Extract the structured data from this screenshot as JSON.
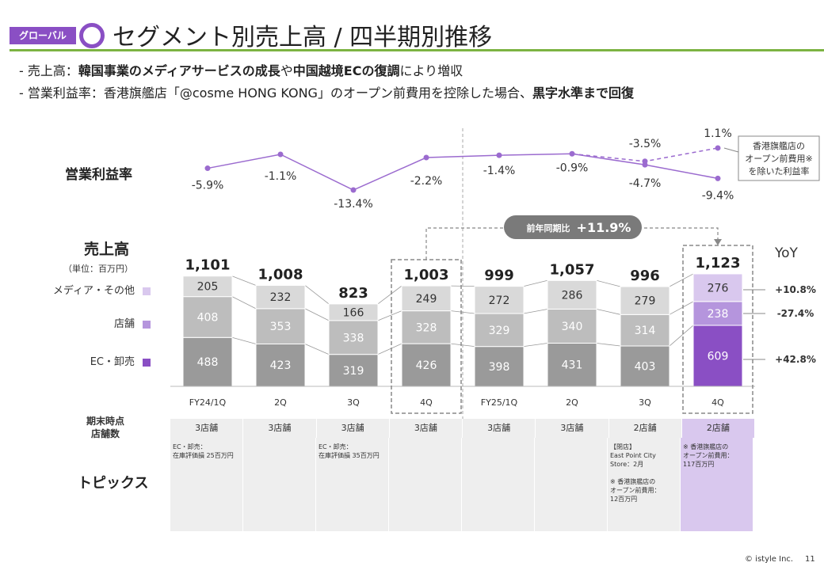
{
  "header": {
    "tag": "グローバル",
    "title": "セグメント別売上高 / 四半期別推移"
  },
  "bullets": [
    {
      "parts": [
        {
          "t": "- 売上高：",
          "b": false
        },
        {
          "t": "韓国事業のメディアサービスの成長",
          "b": true
        },
        {
          "t": "や",
          "b": false
        },
        {
          "t": "中国越境ECの復調",
          "b": true
        },
        {
          "t": "により増収",
          "b": false
        }
      ]
    },
    {
      "parts": [
        {
          "t": "- 営業利益率：香港旗艦店「@cosme HONG KONG」のオープン前費用を控除した場合、",
          "b": false
        },
        {
          "t": "黒字水準まで回復",
          "b": true
        }
      ]
    }
  ],
  "labels": {
    "margin_title": "営業利益率",
    "sales_title": "売上高",
    "unit": "（単位：百万円）",
    "legend_media": "メディア・その他",
    "legend_store": "店舗",
    "legend_ec": "EC・卸売",
    "yoy_title": "YoY",
    "yoy_callout_label": "前年同期比",
    "yoy_callout_value": "+11.9%",
    "note_box": "香港旗艦店の\nオープン前費用※\nを除いた利益率",
    "stores_header": "期末時点\n店舗数",
    "topics_header": "トピックス"
  },
  "colors": {
    "accent": "#8a4fc4",
    "green_rule": "#7cb342",
    "ec": "#9a9a9a",
    "store": "#bdbdbd",
    "media": "#d9d9d9",
    "ec_hl": "#8a4fc4",
    "store_hl": "#b595dd",
    "media_hl": "#d9c8ee",
    "line": "#9b6bcf"
  },
  "chart_data": {
    "type": "bar",
    "title": "売上高",
    "categories": [
      "FY24/1Q",
      "2Q",
      "3Q",
      "4Q",
      "FY25/1Q",
      "2Q",
      "3Q",
      "4Q"
    ],
    "series": [
      {
        "name": "EC・卸売",
        "values": [
          488,
          423,
          319,
          426,
          398,
          431,
          403,
          609
        ]
      },
      {
        "name": "店舗",
        "values": [
          408,
          353,
          338,
          328,
          329,
          340,
          314,
          238
        ]
      },
      {
        "name": "メディア・その他",
        "values": [
          205,
          232,
          166,
          249,
          272,
          286,
          279,
          276
        ]
      }
    ],
    "totals": [
      "1,101",
      "1,008",
      "823",
      "1,003",
      "999",
      "1,057",
      "996",
      "1,123"
    ],
    "yoy": [
      {
        "series": "メディア・その他",
        "value": "+10.8%"
      },
      {
        "series": "店舗",
        "value": "-27.4%"
      },
      {
        "series": "EC・卸売",
        "value": "+42.8%"
      }
    ],
    "margin": {
      "type": "line",
      "name": "営業利益率",
      "values": [
        -5.9,
        -1.1,
        -13.4,
        -2.2,
        -1.4,
        -0.9,
        -4.7,
        -9.4
      ],
      "labels": [
        "-5.9%",
        "-1.1%",
        "-13.4%",
        "-2.2%",
        "-1.4%",
        "-0.9%",
        "-4.7%",
        "-9.4%"
      ],
      "adjusted": {
        "name": "香港旗艦店のオープン前費用※を除いた利益率",
        "from_index": 6,
        "values": [
          -3.5,
          1.1
        ],
        "labels": [
          "-3.5%",
          "1.1%"
        ]
      }
    }
  },
  "stores": [
    "3店舗",
    "3店舗",
    "3店舗",
    "3店舗",
    "3店舗",
    "3店舗",
    "2店舗",
    "2店舗"
  ],
  "topics": [
    "EC・卸売：\n在庫評価損 25百万円",
    "",
    "EC・卸売：\n在庫評価損 35百万円",
    "",
    "",
    "",
    "【閉店】\nEast Point City Store：2月\n\n※ 香港旗艦店の\nオープン前費用：\n12百万円",
    "※ 香港旗艦店の\nオープン前費用：\n117百万円"
  ],
  "footer": {
    "copyright": "© istyle Inc.",
    "page": "11"
  }
}
